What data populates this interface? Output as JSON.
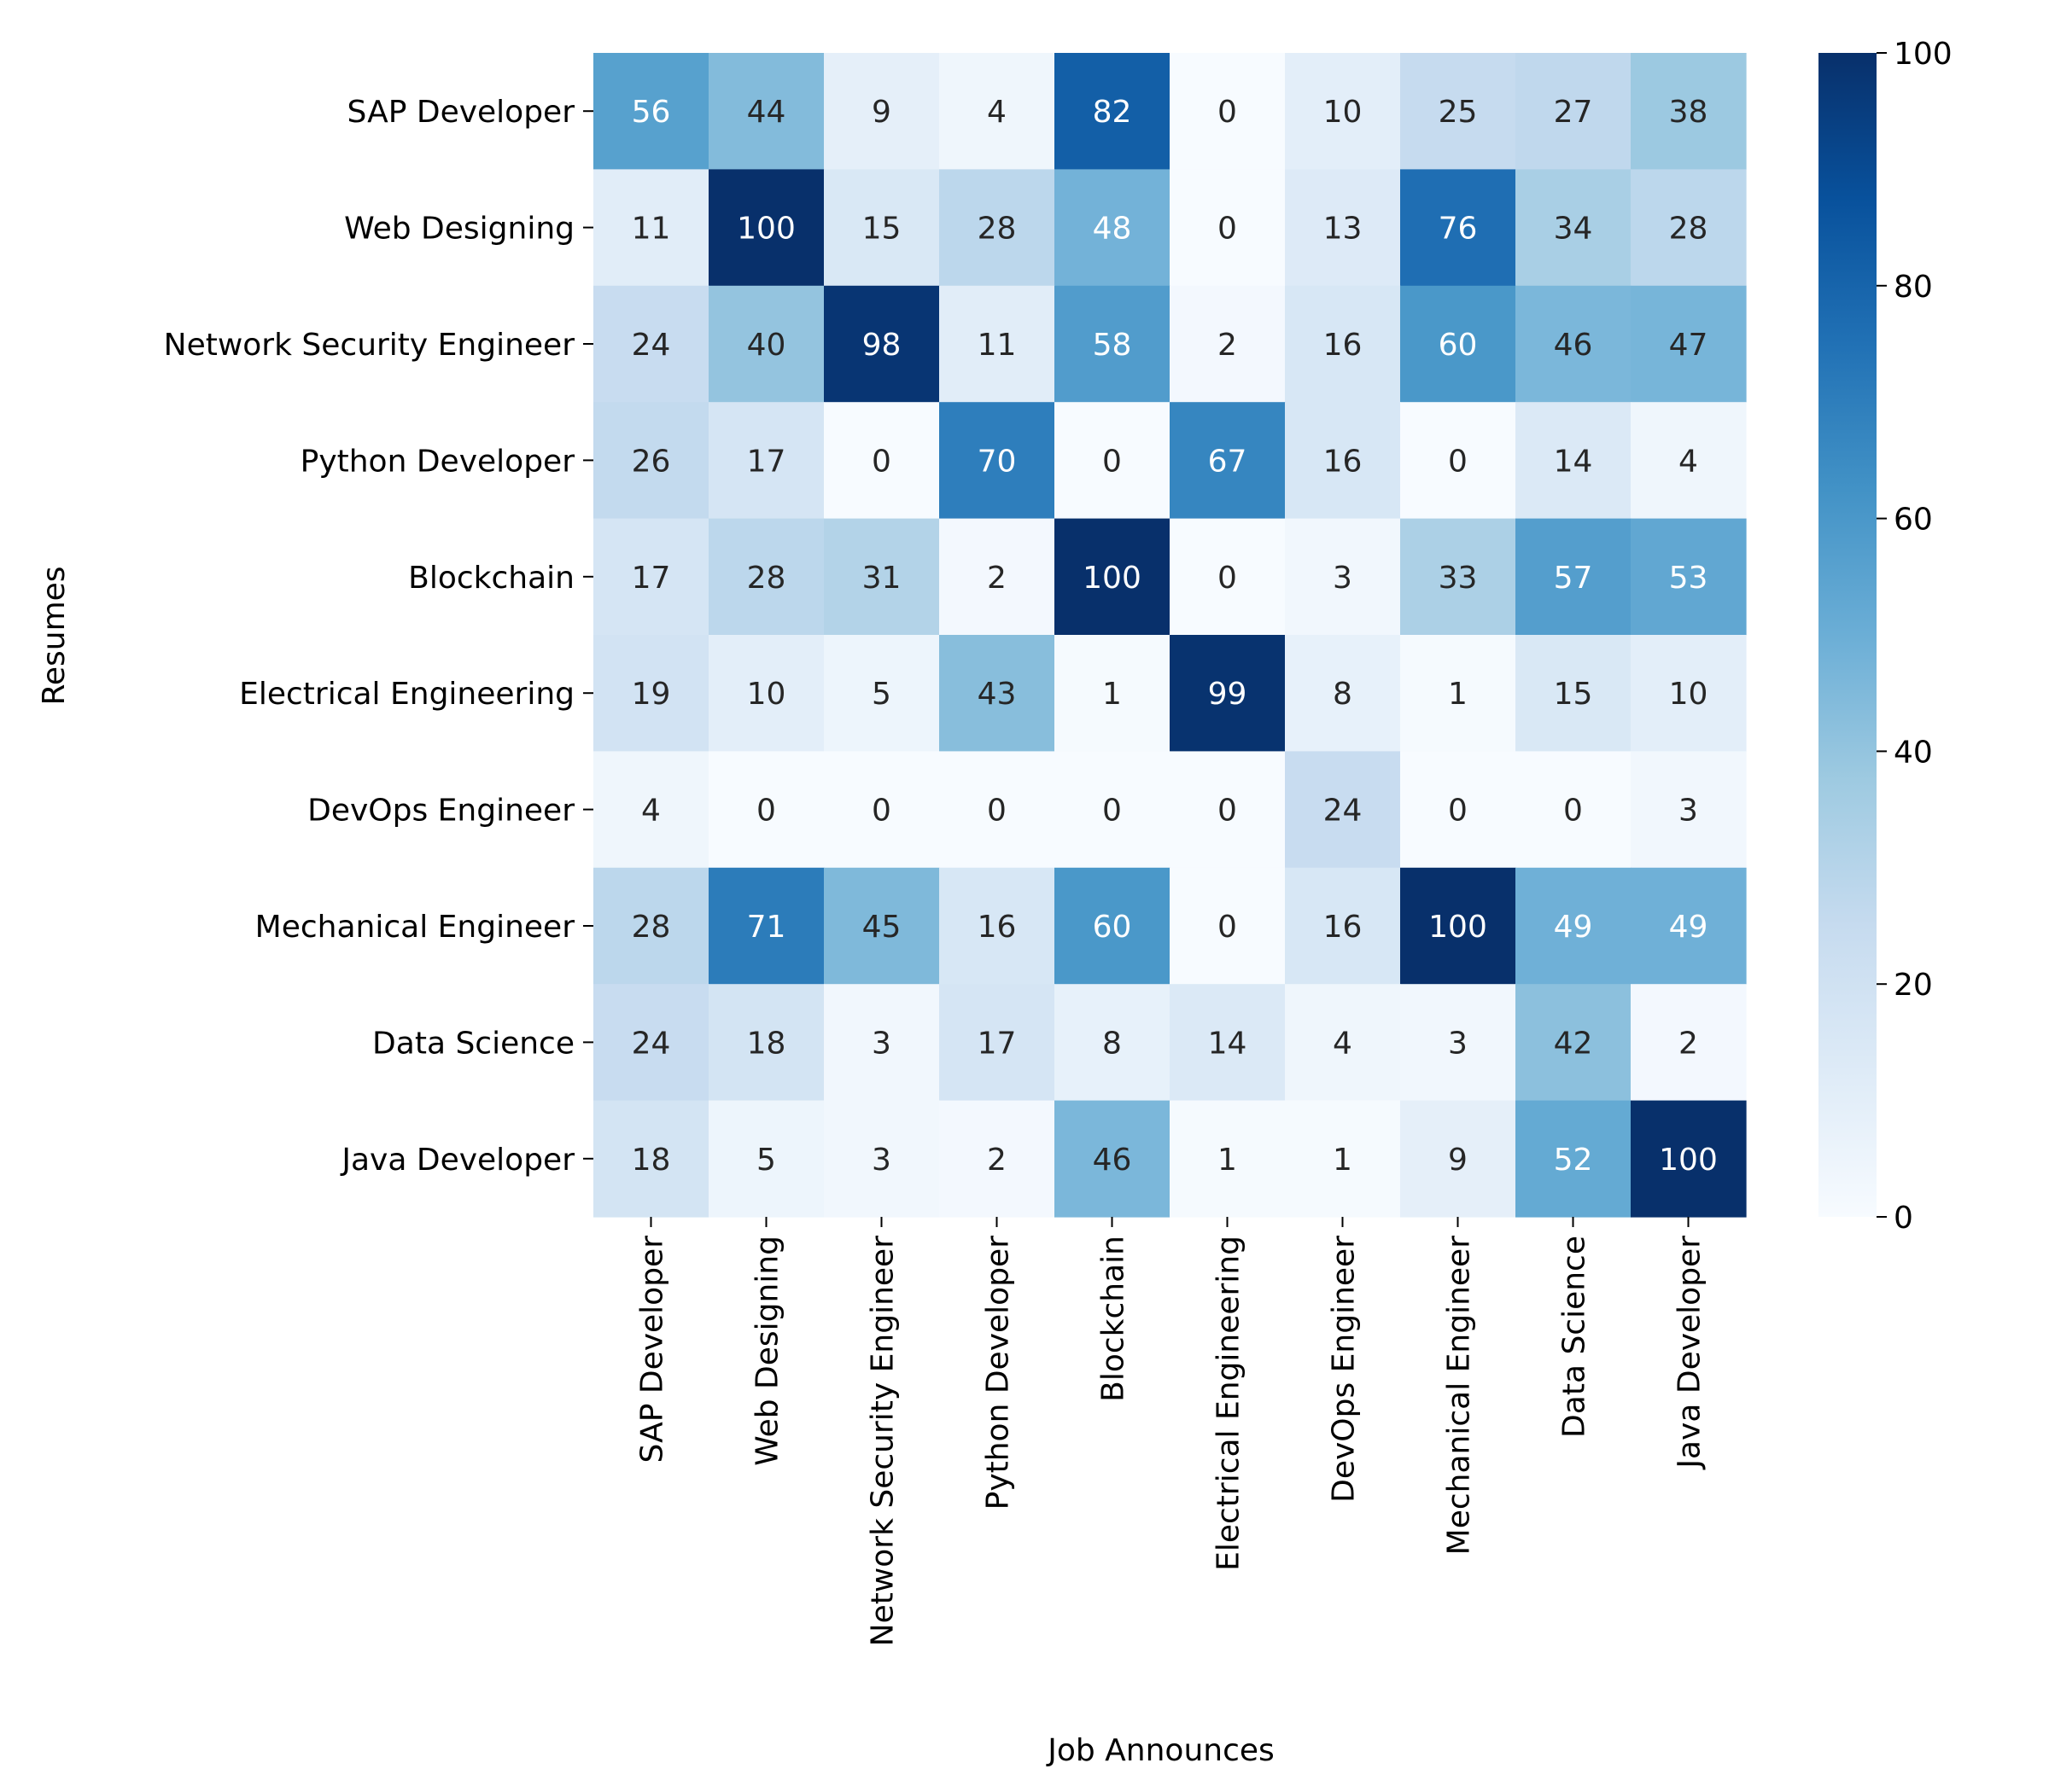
{
  "chart_data": {
    "type": "heatmap",
    "title": "",
    "xlabel": "Job Announces",
    "ylabel": "Resumes",
    "x_categories": [
      "SAP Developer",
      "Web Designing",
      "Network Security Engineer",
      "Python Developer",
      "Blockchain",
      "Electrical Engineering",
      "DevOps Engineer",
      "Mechanical Engineer",
      "Data Science",
      "Java Developer"
    ],
    "y_categories": [
      "SAP Developer",
      "Web Designing",
      "Network Security Engineer",
      "Python Developer",
      "Blockchain",
      "Electrical Engineering",
      "DevOps Engineer",
      "Mechanical Engineer",
      "Data Science",
      "Java Developer"
    ],
    "values": [
      [
        56,
        44,
        9,
        4,
        82,
        0,
        10,
        25,
        27,
        38
      ],
      [
        11,
        100,
        15,
        28,
        48,
        0,
        13,
        76,
        34,
        28
      ],
      [
        24,
        40,
        98,
        11,
        58,
        2,
        16,
        60,
        46,
        47
      ],
      [
        26,
        17,
        0,
        70,
        0,
        67,
        16,
        0,
        14,
        4
      ],
      [
        17,
        28,
        31,
        2,
        100,
        0,
        3,
        33,
        57,
        53
      ],
      [
        19,
        10,
        5,
        43,
        1,
        99,
        8,
        1,
        15,
        10
      ],
      [
        4,
        0,
        0,
        0,
        0,
        0,
        24,
        0,
        0,
        3
      ],
      [
        28,
        71,
        45,
        16,
        60,
        0,
        16,
        100,
        49,
        49
      ],
      [
        24,
        18,
        3,
        17,
        8,
        14,
        4,
        3,
        42,
        2
      ],
      [
        18,
        5,
        3,
        2,
        46,
        1,
        1,
        9,
        52,
        100
      ]
    ],
    "colormap": "Blues",
    "vmin": 0,
    "vmax": 100,
    "colorbar_ticks": [
      0,
      20,
      40,
      60,
      80,
      100
    ],
    "colors": {
      "low": "#f7fbff",
      "high": "#08306b",
      "text_dark": "#262626",
      "text_light": "#ffffff"
    }
  }
}
